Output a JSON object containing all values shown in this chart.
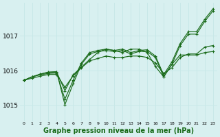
{
  "xlabel": "Graphe pression niveau de la mer (hPa)",
  "bg_color": "#d8f0f0",
  "grid_color": "#c8e8e8",
  "line_color": "#1a6b1a",
  "x_ticks": [
    0,
    1,
    2,
    3,
    4,
    5,
    6,
    7,
    8,
    9,
    10,
    11,
    12,
    13,
    14,
    15,
    16,
    17,
    18,
    19,
    20,
    21,
    22,
    23
  ],
  "ylim": [
    1014.55,
    1017.95
  ],
  "yticks": [
    1015,
    1016,
    1017
  ],
  "series": [
    [
      1015.72,
      1015.82,
      1015.88,
      1015.92,
      1015.93,
      1015.18,
      1015.72,
      1016.22,
      1016.52,
      1016.58,
      1016.62,
      1016.58,
      1016.62,
      1016.52,
      1016.58,
      1016.6,
      1016.42,
      1015.88,
      1016.25,
      1016.78,
      1017.12,
      1017.12,
      1017.48,
      1017.78
    ],
    [
      1015.72,
      1015.82,
      1015.9,
      1015.95,
      1015.96,
      1015.42,
      1015.88,
      1016.1,
      1016.32,
      1016.52,
      1016.62,
      1016.58,
      1016.52,
      1016.62,
      1016.62,
      1016.52,
      1016.12,
      1015.82,
      1016.18,
      1016.45,
      1016.45,
      1016.45,
      1016.52,
      1016.55
    ],
    [
      1015.72,
      1015.82,
      1015.9,
      1015.96,
      1015.97,
      1015.02,
      1015.62,
      1016.18,
      1016.48,
      1016.55,
      1016.58,
      1016.55,
      1016.58,
      1016.48,
      1016.55,
      1016.55,
      1016.38,
      1015.82,
      1016.18,
      1016.72,
      1017.05,
      1017.05,
      1017.42,
      1017.72
    ],
    [
      1015.72,
      1015.78,
      1015.84,
      1015.89,
      1015.89,
      1015.52,
      1015.85,
      1016.08,
      1016.28,
      1016.35,
      1016.42,
      1016.38,
      1016.38,
      1016.42,
      1016.42,
      1016.38,
      1016.22,
      1015.92,
      1016.08,
      1016.38,
      1016.48,
      1016.48,
      1016.68,
      1016.72
    ]
  ]
}
